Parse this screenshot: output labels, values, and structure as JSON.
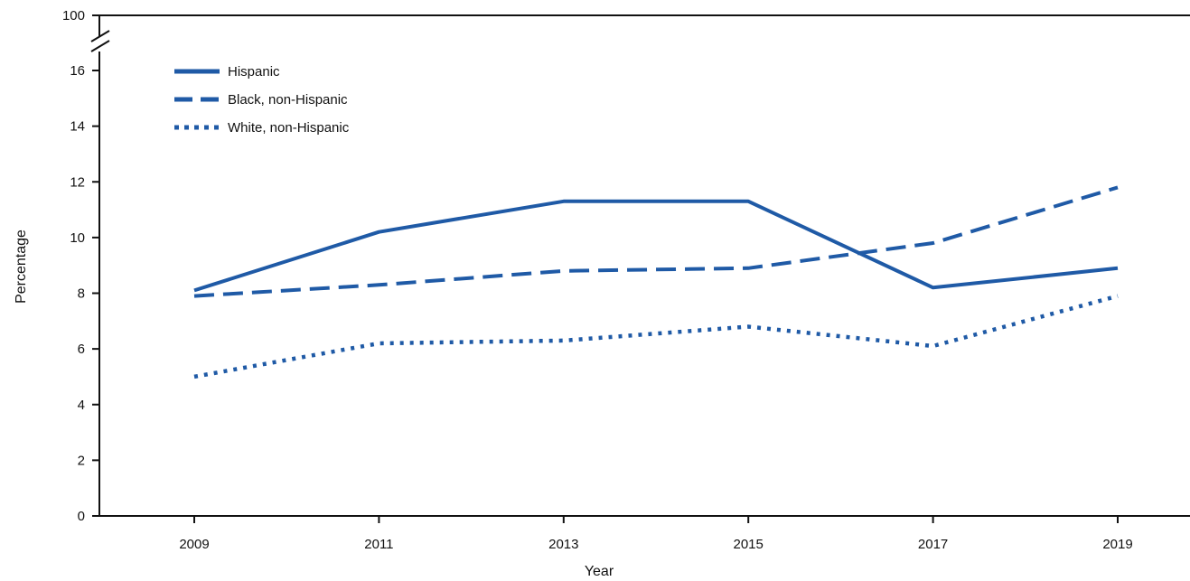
{
  "chart_data": {
    "type": "line",
    "xlabel": "Year",
    "ylabel": "Percentage",
    "x": [
      2009,
      2011,
      2013,
      2015,
      2017,
      2019
    ],
    "ylim": [
      0,
      16
    ],
    "y_ticks": [
      0,
      2,
      4,
      6,
      8,
      10,
      12,
      14,
      16
    ],
    "y_break_top_label": "100",
    "series": [
      {
        "name": "Hispanic",
        "style": "solid",
        "values": [
          8.1,
          10.2,
          11.3,
          11.3,
          8.2,
          8.9
        ]
      },
      {
        "name": "Black, non-Hispanic",
        "style": "dashed",
        "values": [
          7.9,
          8.3,
          8.8,
          8.9,
          9.8,
          11.8
        ]
      },
      {
        "name": "White, non-Hispanic",
        "style": "dotted",
        "values": [
          5.0,
          6.2,
          6.3,
          6.8,
          6.1,
          7.9
        ]
      }
    ],
    "legend_position": "top-left",
    "grid": false,
    "colors": {
      "line": "#1f5aa6",
      "axis": "#111111"
    }
  }
}
